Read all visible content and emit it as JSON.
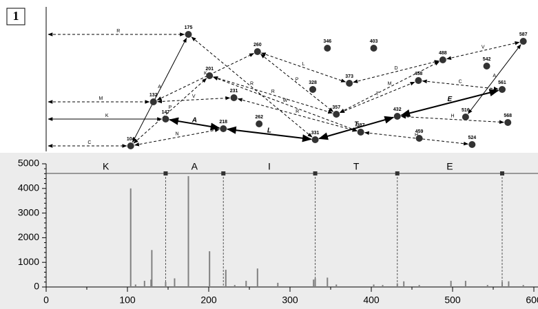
{
  "panel_label": "1",
  "graph": {
    "nodes": [
      {
        "label": 175
      },
      {
        "label": 260
      },
      {
        "label": 346
      },
      {
        "label": 403
      },
      {
        "label": 587
      },
      {
        "label": 488
      },
      {
        "label": 542
      },
      {
        "label": 132
      },
      {
        "label": 201
      },
      {
        "label": 328
      },
      {
        "label": 373
      },
      {
        "label": 458
      },
      {
        "label": 561
      },
      {
        "label": 231
      },
      {
        "label": 357
      },
      {
        "label": 147
      },
      {
        "label": 432
      },
      {
        "label": 516
      },
      {
        "label": 568
      },
      {
        "label": 218
      },
      {
        "label": 262
      },
      {
        "label": 387
      },
      {
        "label": 459
      },
      {
        "label": 104
      },
      {
        "label": 331
      },
      {
        "label": 524
      }
    ],
    "edges": [
      {
        "from": null,
        "to": 175,
        "label": "R",
        "style": "dashed"
      },
      {
        "from": null,
        "to": 132,
        "label": "M",
        "style": "dashed"
      },
      {
        "from": null,
        "to": 147,
        "label": "K",
        "style": "solid"
      },
      {
        "from": null,
        "to": 104,
        "label": "C",
        "style": "dashed"
      },
      {
        "from": 104,
        "to": 175,
        "label": "A",
        "style": "solid"
      },
      {
        "from": 132,
        "to": 260,
        "label": "K",
        "style": "dashed"
      },
      {
        "from": 104,
        "to": 201,
        "label": "P",
        "style": "dashed"
      },
      {
        "from": 132,
        "to": 231,
        "label": "V",
        "style": "dashed"
      },
      {
        "from": 104,
        "to": 218,
        "label": "N",
        "style": "dashed"
      },
      {
        "from": 147,
        "to": 218,
        "label": "A",
        "style": "bold"
      },
      {
        "from": 218,
        "to": 331,
        "label": "L",
        "style": "bold"
      },
      {
        "from": 331,
        "to": 432,
        "label": "T",
        "style": "bold"
      },
      {
        "from": 432,
        "to": 561,
        "label": "E",
        "style": "bold"
      },
      {
        "from": 175,
        "to": 331,
        "label": "R",
        "style": "dashed"
      },
      {
        "from": 201,
        "to": 357,
        "label": "R",
        "style": "dashed"
      },
      {
        "from": 201,
        "to": 387,
        "label": "W",
        "style": "dashed"
      },
      {
        "from": 231,
        "to": 387,
        "label": "R",
        "style": "dashed"
      },
      {
        "from": 260,
        "to": 357,
        "label": "P",
        "style": "dashed"
      },
      {
        "from": 260,
        "to": 373,
        "label": "L",
        "style": "dashed"
      },
      {
        "from": 357,
        "to": 458,
        "label": "T",
        "style": "dashed"
      },
      {
        "from": 357,
        "to": 488,
        "label": "M",
        "style": "dashed"
      },
      {
        "from": 373,
        "to": 488,
        "label": "D",
        "style": "dashed"
      },
      {
        "from": 458,
        "to": 561,
        "label": "C",
        "style": "dashed"
      },
      {
        "from": 432,
        "to": 568,
        "label": "H",
        "style": "dashed"
      },
      {
        "from": 387,
        "to": 524,
        "label": "H",
        "style": "dashed"
      },
      {
        "from": 587,
        "to": 516,
        "label": "A",
        "style": "solid"
      },
      {
        "from": 488,
        "to": 587,
        "label": "V",
        "style": "dashed"
      }
    ]
  },
  "chart_data": {
    "type": "bar",
    "color": "#808080",
    "x": [
      104,
      110,
      121,
      129,
      130,
      147,
      158,
      175,
      201,
      221,
      232,
      246,
      260,
      285,
      329,
      331,
      346,
      357,
      403,
      414,
      432,
      440,
      459,
      498,
      516,
      543,
      561,
      569,
      587
    ],
    "values": [
      4000,
      100,
      250,
      300,
      1500,
      200,
      350,
      4500,
      1450,
      700,
      80,
      250,
      750,
      170,
      300,
      350,
      380,
      100,
      100,
      80,
      150,
      230,
      80,
      250,
      250,
      80,
      200,
      230,
      80
    ],
    "xlim": [
      0,
      605
    ],
    "xticks": [
      0,
      100,
      200,
      300,
      400,
      500,
      600
    ],
    "ylim": [
      0,
      5000
    ],
    "yticks": [
      0,
      1000,
      2000,
      3000,
      4000,
      5000
    ],
    "sequence": {
      "letters": [
        "K",
        "A",
        "I",
        "T",
        "E"
      ],
      "boundaries": [
        147,
        218,
        331,
        432,
        561
      ]
    }
  }
}
